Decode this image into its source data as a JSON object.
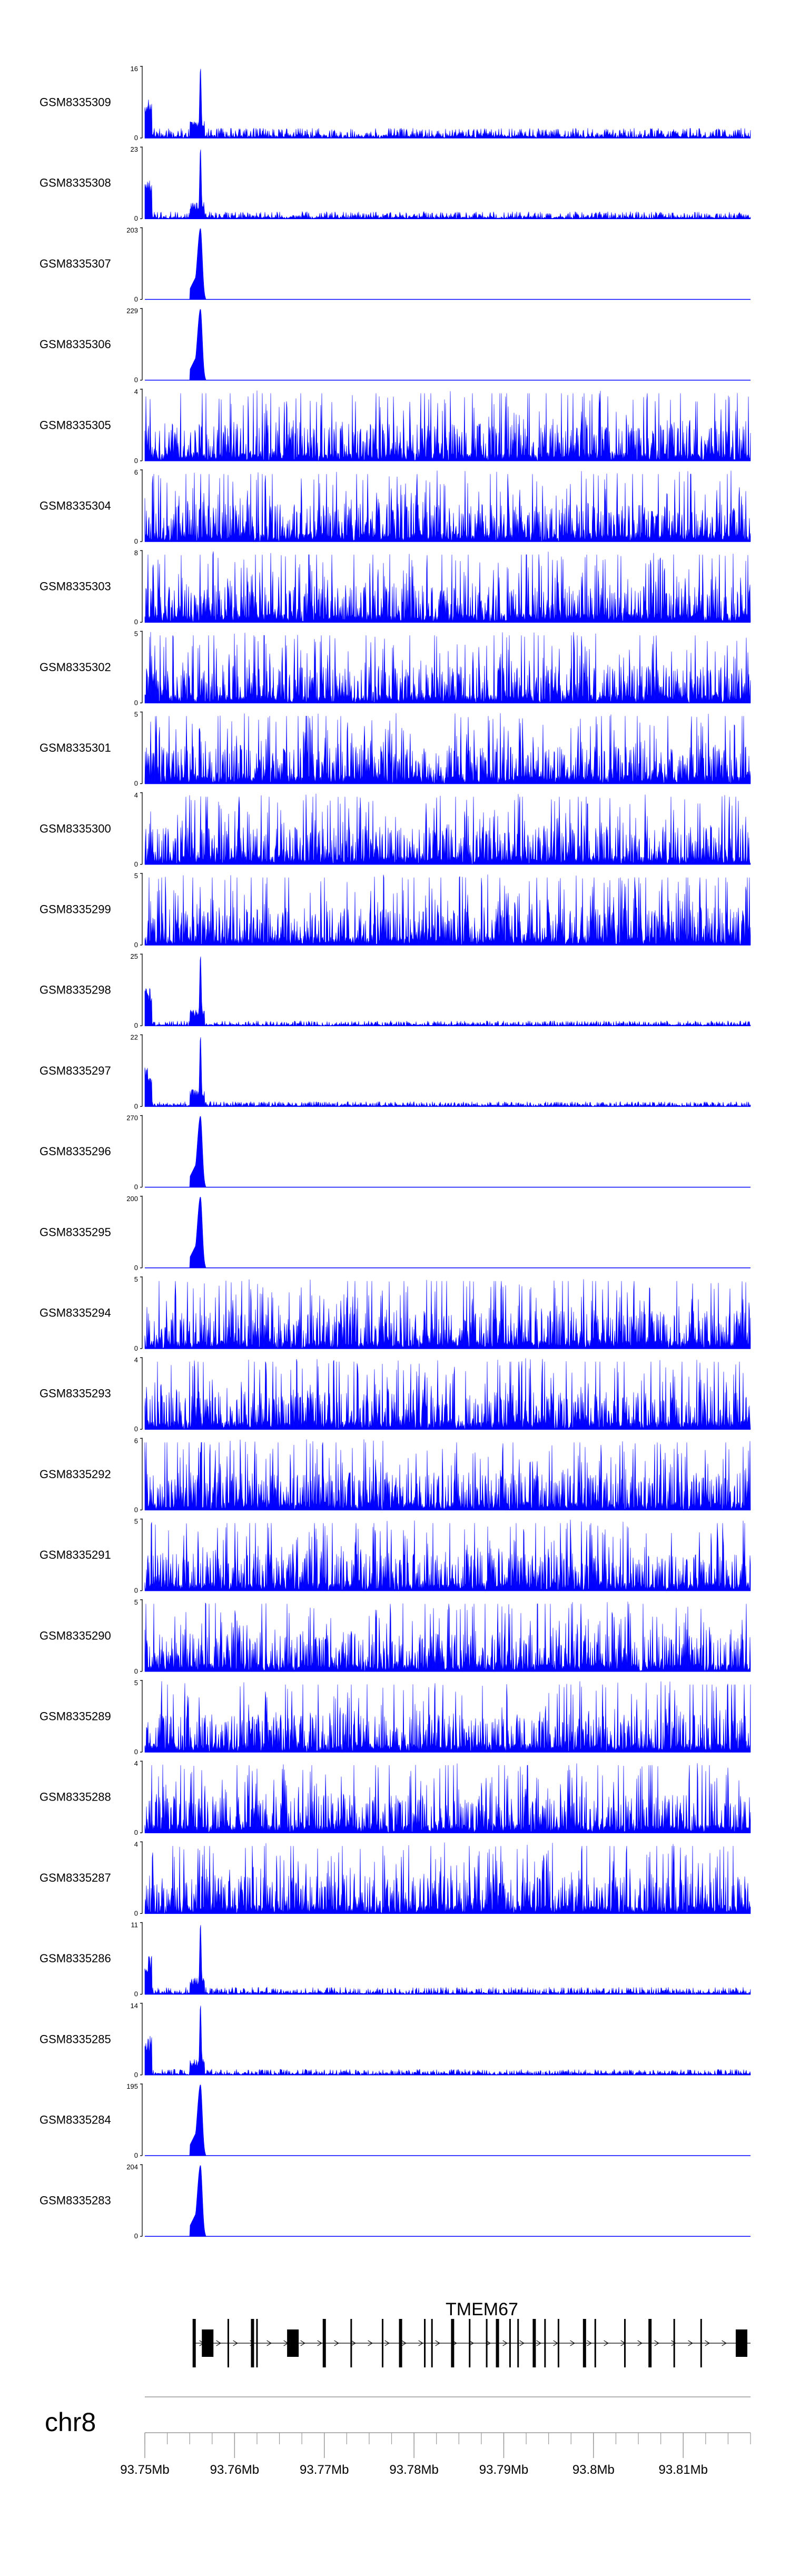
{
  "chart_data": {
    "type": "area",
    "color": "#0000ff",
    "region": {
      "chrom": "chr8",
      "start": 93.75,
      "end": 93.8175,
      "unit": "Mb"
    },
    "x_ticks": [
      "93.75Mb",
      "93.76Mb",
      "93.77Mb",
      "93.78Mb",
      "93.79Mb",
      "93.8Mb",
      "93.81Mb"
    ],
    "x_tick_values": [
      93.75,
      93.76,
      93.77,
      93.78,
      93.79,
      93.8,
      93.81
    ],
    "minor_tick_step": 0.0025,
    "peak_center": 93.7562,
    "gene": {
      "name": "TMEM67",
      "strand": "+",
      "start": 93.7555,
      "end": 93.8175
    },
    "exons": [
      93.7555,
      93.757,
      93.7593,
      93.762,
      93.7625,
      93.7665,
      93.77,
      93.773,
      93.7765,
      93.7785,
      93.7812,
      93.782,
      93.7843,
      93.7862,
      93.7881,
      93.7893,
      93.7907,
      93.7916,
      93.7934,
      93.7946,
      93.7961,
      93.799,
      93.8002,
      93.8035,
      93.8063,
      93.809,
      93.812,
      93.8165
    ],
    "tracks": [
      {
        "name": "GSM8335309",
        "ymax": "16",
        "peak": 1.0,
        "noise": 0.14,
        "rough": false
      },
      {
        "name": "GSM8335308",
        "ymax": "23",
        "peak": 1.0,
        "noise": 0.1,
        "rough": false
      },
      {
        "name": "GSM8335307",
        "ymax": "203",
        "peak": 1.0,
        "noise": 0.0,
        "rough": false
      },
      {
        "name": "GSM8335306",
        "ymax": "229",
        "peak": 1.0,
        "noise": 0.0,
        "rough": false
      },
      {
        "name": "GSM8335305",
        "ymax": "4",
        "peak": 0.0,
        "noise": 0.0,
        "rough": true
      },
      {
        "name": "GSM8335304",
        "ymax": "6",
        "peak": 0.0,
        "noise": 0.0,
        "rough": true
      },
      {
        "name": "GSM8335303",
        "ymax": "8",
        "peak": 0.0,
        "noise": 0.0,
        "rough": true
      },
      {
        "name": "GSM8335302",
        "ymax": "5",
        "peak": 0.0,
        "noise": 0.0,
        "rough": true
      },
      {
        "name": "GSM8335301",
        "ymax": "5",
        "peak": 0.0,
        "noise": 0.0,
        "rough": true
      },
      {
        "name": "GSM8335300",
        "ymax": "4",
        "peak": 0.0,
        "noise": 0.0,
        "rough": true
      },
      {
        "name": "GSM8335299",
        "ymax": "5",
        "peak": 0.0,
        "noise": 0.0,
        "rough": true
      },
      {
        "name": "GSM8335298",
        "ymax": "25",
        "peak": 1.0,
        "noise": 0.07,
        "rough": false
      },
      {
        "name": "GSM8335297",
        "ymax": "22",
        "peak": 1.0,
        "noise": 0.07,
        "rough": false
      },
      {
        "name": "GSM8335296",
        "ymax": "270",
        "peak": 1.0,
        "noise": 0.0,
        "rough": false
      },
      {
        "name": "GSM8335295",
        "ymax": "200",
        "peak": 1.0,
        "noise": 0.0,
        "rough": false
      },
      {
        "name": "GSM8335294",
        "ymax": "5",
        "peak": 0.0,
        "noise": 0.0,
        "rough": true
      },
      {
        "name": "GSM8335293",
        "ymax": "4",
        "peak": 0.0,
        "noise": 0.0,
        "rough": true
      },
      {
        "name": "GSM8335292",
        "ymax": "6",
        "peak": 0.0,
        "noise": 0.0,
        "rough": true
      },
      {
        "name": "GSM8335291",
        "ymax": "5",
        "peak": 0.0,
        "noise": 0.0,
        "rough": true
      },
      {
        "name": "GSM8335290",
        "ymax": "5",
        "peak": 0.0,
        "noise": 0.0,
        "rough": true
      },
      {
        "name": "GSM8335289",
        "ymax": "5",
        "peak": 0.0,
        "noise": 0.0,
        "rough": true
      },
      {
        "name": "GSM8335288",
        "ymax": "4",
        "peak": 0.0,
        "noise": 0.0,
        "rough": true
      },
      {
        "name": "GSM8335287",
        "ymax": "4",
        "peak": 0.0,
        "noise": 0.0,
        "rough": true
      },
      {
        "name": "GSM8335286",
        "ymax": "11",
        "peak": 1.0,
        "noise": 0.1,
        "rough": false
      },
      {
        "name": "GSM8335285",
        "ymax": "14",
        "peak": 1.0,
        "noise": 0.08,
        "rough": false
      },
      {
        "name": "GSM8335284",
        "ymax": "195",
        "peak": 1.0,
        "noise": 0.0,
        "rough": false
      },
      {
        "name": "GSM8335283",
        "ymax": "204",
        "peak": 1.0,
        "noise": 0.0,
        "rough": false
      }
    ]
  }
}
